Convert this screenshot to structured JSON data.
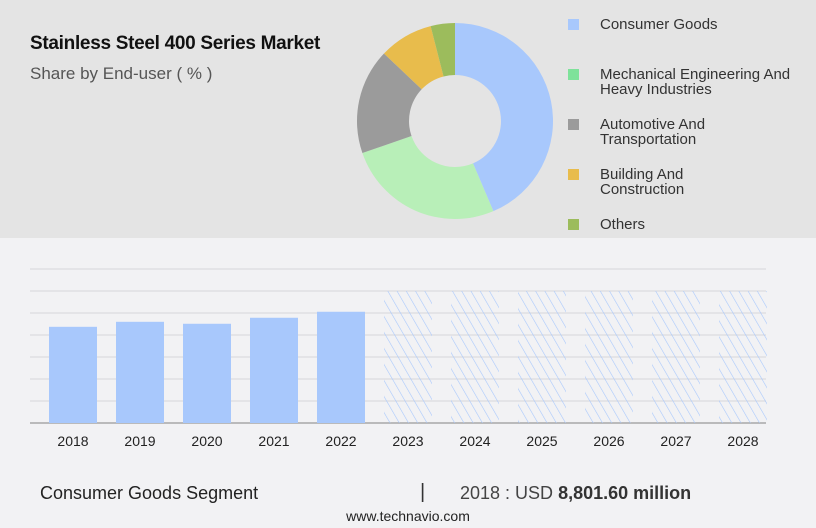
{
  "title": "Stainless Steel 400 Series Market",
  "subtitle": "Share by End-user ( % )",
  "chart_data": [
    {
      "type": "pie",
      "donut": true,
      "categories": [
        "Consumer Goods",
        "Mechanical Engineering And Heavy Industries",
        "Automotive And Transportation",
        "Building And Construction",
        "Others"
      ],
      "values": [
        43.6,
        26.1,
        17.4,
        8.9,
        4.0
      ],
      "colors": [
        "#a8c8fc",
        "#b8efb8",
        "#9b9b9b",
        "#e8bc4c",
        "#9cbc5c"
      ],
      "legend_colors": [
        "#a8c8fc",
        "#7ee29a",
        "#9b9b9b",
        "#e8bc4c",
        "#9cbc5c"
      ],
      "legend_placement": "right"
    },
    {
      "type": "bar",
      "categories": [
        "2018",
        "2019",
        "2020",
        "2021",
        "2022",
        "2023",
        "2024",
        "2025",
        "2026",
        "2027",
        "2028"
      ],
      "values": [
        8801.6,
        9260,
        9080,
        9630,
        10180,
        null,
        null,
        null,
        null,
        null,
        null
      ],
      "forecast": [
        false,
        false,
        false,
        false,
        false,
        true,
        true,
        true,
        true,
        true,
        true
      ],
      "ylim": [
        0,
        14000
      ],
      "grid": true,
      "color": "#a8c8fc"
    }
  ],
  "footer": {
    "segment": "Consumer Goods Segment",
    "separator": "|",
    "value_prefix": "2018 : USD ",
    "value": "8,801.60 million"
  },
  "site": "www.technavio.com"
}
